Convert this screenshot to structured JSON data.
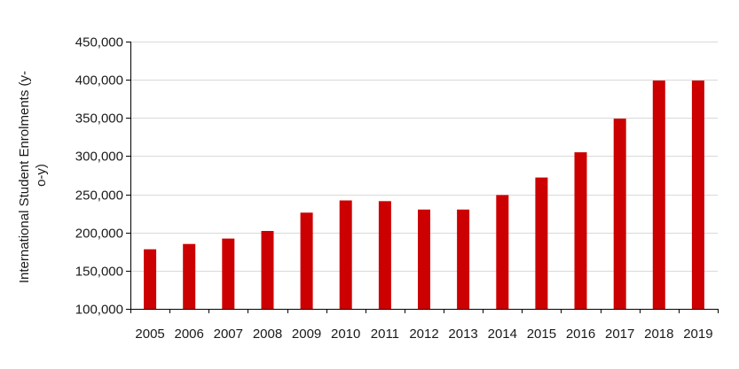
{
  "chart_data": {
    "type": "bar",
    "title": "",
    "xlabel": "",
    "ylabel_line1": "International Student Enrolments (y-",
    "ylabel_line2": "o-y)",
    "categories": [
      "2005",
      "2006",
      "2007",
      "2008",
      "2009",
      "2010",
      "2011",
      "2012",
      "2013",
      "2014",
      "2015",
      "2016",
      "2017",
      "2018",
      "2019"
    ],
    "values": [
      178000,
      185000,
      192000,
      202000,
      226000,
      242000,
      241000,
      230000,
      230000,
      249000,
      272000,
      305000,
      349000,
      399000,
      399000
    ],
    "ylim": [
      100000,
      450000
    ],
    "yticks": [
      100000,
      150000,
      200000,
      250000,
      300000,
      350000,
      400000,
      450000
    ],
    "ytick_labels": [
      "100,000",
      "150,000",
      "200,000",
      "250,000",
      "300,000",
      "350,000",
      "400,000",
      "450,000"
    ],
    "grid": true,
    "legend": "none",
    "bar_color": "#cc0000"
  }
}
